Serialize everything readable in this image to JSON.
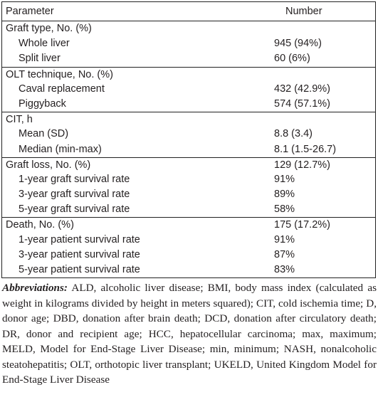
{
  "table": {
    "header": {
      "parameter": "Parameter",
      "number": "Number"
    },
    "rows": [
      {
        "label": "Graft type, No. (%)",
        "value": "",
        "type": "group",
        "first": true
      },
      {
        "label": "Whole liver",
        "value": "945 (94%)",
        "type": "sub"
      },
      {
        "label": "Split liver",
        "value": "60 (6%)",
        "type": "sub"
      },
      {
        "label": "OLT technique, No. (%)",
        "value": "",
        "type": "group"
      },
      {
        "label": "Caval replacement",
        "value": "432 (42.9%)",
        "type": "sub"
      },
      {
        "label": "Piggyback",
        "value": "574 (57.1%)",
        "type": "sub"
      },
      {
        "label": "CIT, h",
        "value": "",
        "type": "group"
      },
      {
        "label": "Mean (SD)",
        "value": "8.8 (3.4)",
        "type": "sub"
      },
      {
        "label": "Median (min-max)",
        "value": "8.1 (1.5-26.7)",
        "type": "sub"
      },
      {
        "label": "Graft loss, No. (%)",
        "value": "129 (12.7%)",
        "type": "group"
      },
      {
        "label": "1-year graft survival rate",
        "value": "91%",
        "type": "sub"
      },
      {
        "label": "3-year graft survival rate",
        "value": "89%",
        "type": "sub"
      },
      {
        "label": "5-year graft survival rate",
        "value": "58%",
        "type": "sub"
      },
      {
        "label": "Death, No. (%)",
        "value": "175 (17.2%)",
        "type": "group"
      },
      {
        "label": "1-year patient survival rate",
        "value": "91%",
        "type": "sub"
      },
      {
        "label": "3-year patient survival rate",
        "value": "87%",
        "type": "sub"
      },
      {
        "label": "5-year patient survival rate",
        "value": "83%",
        "type": "sub"
      }
    ]
  },
  "footnote": {
    "label": "Abbreviations:",
    "text": " ALD, alcoholic liver disease; BMI, body mass index (calculated as weight in kilograms divided by height in meters squared); CIT, cold ischemia time; D, donor age; DBD, donation after brain death; DCD, donation after circulatory death; DR, donor and recipient age; HCC, hepatocellular carcinoma; max, maximum; MELD, Model for End-Stage Liver Disease; min, minimum; NASH, nonalcoholic steatohepatitis; OLT, orthotopic liver transplant; UKELD, United Kingdom Model for End-Stage Liver Disease"
  }
}
